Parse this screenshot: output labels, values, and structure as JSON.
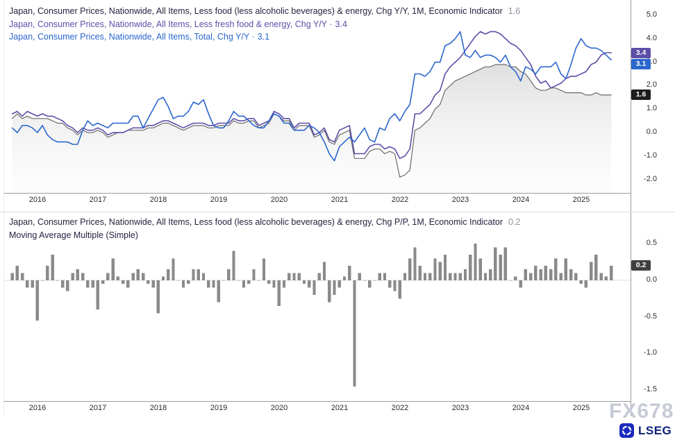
{
  "watermark": "FX678",
  "brand": {
    "logo_text": "LSEG"
  },
  "chart_data": [
    {
      "type": "line",
      "x_start": 2015.5833,
      "x_step": 0.0833333,
      "xlim": [
        2015.45,
        2025.82
      ],
      "ylim": [
        -2.57,
        5.5
      ],
      "x_ticks": [
        2016,
        2017,
        2018,
        2019,
        2020,
        2021,
        2022,
        2023,
        2024,
        2025
      ],
      "y_ticks": [
        5.0,
        4.0,
        3.0,
        2.0,
        1.0,
        0.0,
        -1.0,
        -2.0
      ],
      "grid": false,
      "legend_position": "top-left",
      "legend": [
        {
          "text": "Japan, Consumer Prices, Nationwide, All Items, Less food (less alcoholic beverages) & energy, Chg Y/Y, 1M, Economic Indicator",
          "value": "1.6",
          "color": "#23233f",
          "value_color": "#8f8f9b"
        },
        {
          "text": "Japan, Consumer Prices, Nationwide, All Items, Less fresh food & energy, Chg Y/Y ·",
          "value": "3.4",
          "color": "#5b4fa8",
          "value_color": "#5b4fa8"
        },
        {
          "text": "Japan, Consumer Prices, Nationwide, All Items, Total, Chg Y/Y ·",
          "value": "3.1",
          "color": "#2a66cc",
          "value_color": "#2a66cc"
        }
      ],
      "series": [
        {
          "name": "Japan, Consumer Prices, Nationwide, All Items, Less food (less alcoholic beverages) & energy, Chg Y/Y, 1M, Economic Indicator",
          "color": "#6a6a6a",
          "badge_color": "#1c1c1c",
          "area": true,
          "width": 1.2,
          "last_value": 1.6,
          "values": [
            0.6,
            0.8,
            0.6,
            0.7,
            0.6,
            0.6,
            0.6,
            0.6,
            0.5,
            0.4,
            0.4,
            0.2,
            0.1,
            -0.1,
            0.1,
            0.0,
            0.0,
            0.1,
            0.0,
            -0.2,
            -0.1,
            0.0,
            0.0,
            0.1,
            0.1,
            0.1,
            0.1,
            0.2,
            0.2,
            0.3,
            0.4,
            0.4,
            0.3,
            0.2,
            0.1,
            0.2,
            0.3,
            0.3,
            0.3,
            0.2,
            0.2,
            0.3,
            0.3,
            0.3,
            0.5,
            0.4,
            0.4,
            0.5,
            0.5,
            0.2,
            0.3,
            0.4,
            0.8,
            0.7,
            0.5,
            0.5,
            0.1,
            0.3,
            0.3,
            0.3,
            -0.2,
            -0.1,
            0.1,
            -0.4,
            -0.5,
            -0.1,
            0.0,
            0.1,
            -1.1,
            -1.1,
            -1.1,
            -0.8,
            -0.7,
            -0.7,
            -0.9,
            -0.8,
            -0.9,
            -1.9,
            -1.8,
            -1.6,
            0.1,
            0.2,
            0.4,
            0.6,
            1.0,
            1.2,
            1.8,
            2.0,
            2.2,
            2.3,
            2.4,
            2.5,
            2.6,
            2.7,
            2.8,
            2.8,
            2.9,
            2.9,
            2.9,
            2.8,
            2.8,
            2.6,
            2.5,
            2.2,
            1.9,
            1.8,
            1.8,
            1.9,
            1.9,
            1.8,
            1.7,
            1.7,
            1.7,
            1.7,
            1.6,
            1.6,
            1.7,
            1.6,
            1.6,
            1.6
          ]
        },
        {
          "name": "Japan, Consumer Prices, Nationwide, All Items, Less fresh food & energy, Chg Y/Y",
          "color": "#5b4fa8",
          "width": 1.6,
          "last_value": 3.4,
          "values": [
            0.8,
            0.9,
            0.7,
            0.9,
            0.8,
            0.7,
            0.8,
            0.7,
            0.7,
            0.6,
            0.5,
            0.3,
            0.2,
            0.0,
            0.2,
            0.1,
            0.1,
            0.2,
            0.1,
            -0.1,
            0.0,
            0.0,
            0.0,
            0.1,
            0.2,
            0.2,
            0.2,
            0.3,
            0.3,
            0.4,
            0.5,
            0.5,
            0.4,
            0.3,
            0.2,
            0.3,
            0.4,
            0.4,
            0.4,
            0.3,
            0.3,
            0.4,
            0.4,
            0.4,
            0.6,
            0.5,
            0.5,
            0.6,
            0.6,
            0.3,
            0.4,
            0.5,
            0.9,
            0.8,
            0.6,
            0.6,
            0.2,
            0.4,
            0.4,
            0.4,
            -0.1,
            0.0,
            0.2,
            -0.3,
            -0.4,
            0.1,
            0.2,
            0.3,
            -0.9,
            -0.9,
            -0.9,
            -0.6,
            -0.5,
            -0.5,
            -0.7,
            -0.6,
            -0.7,
            -1.1,
            -1.0,
            -0.7,
            0.8,
            0.8,
            1.0,
            1.2,
            1.6,
            1.8,
            2.5,
            2.8,
            3.0,
            3.2,
            3.5,
            3.8,
            4.1,
            4.3,
            4.2,
            4.3,
            4.3,
            4.2,
            4.0,
            3.8,
            3.7,
            3.5,
            3.2,
            2.9,
            2.4,
            2.1,
            2.2,
            1.9,
            2.0,
            2.1,
            2.3,
            2.4,
            2.4,
            2.5,
            2.6,
            2.9,
            3.0,
            3.3,
            3.4,
            3.4
          ]
        },
        {
          "name": "Japan, Consumer Prices, Nationwide, All Items, Total, Chg Y/Y",
          "color": "#2a66cc",
          "width": 1.6,
          "last_value": 3.1,
          "values": [
            0.2,
            0.0,
            0.3,
            0.3,
            0.2,
            0.0,
            0.3,
            -0.1,
            -0.3,
            -0.4,
            -0.4,
            -0.4,
            -0.5,
            -0.5,
            0.1,
            0.5,
            0.3,
            0.4,
            0.3,
            0.2,
            0.4,
            0.4,
            0.4,
            0.4,
            0.7,
            0.7,
            0.2,
            0.6,
            1.0,
            1.4,
            1.5,
            1.1,
            0.6,
            0.7,
            0.7,
            0.9,
            1.3,
            1.2,
            1.4,
            0.8,
            0.3,
            0.2,
            0.2,
            0.5,
            0.9,
            0.7,
            0.7,
            0.5,
            0.3,
            0.2,
            0.2,
            0.5,
            0.8,
            0.7,
            0.4,
            0.4,
            0.1,
            0.1,
            0.1,
            0.3,
            0.2,
            0.0,
            -0.4,
            -0.9,
            -1.2,
            -0.6,
            -0.4,
            -0.2,
            -0.4,
            -0.1,
            0.2,
            -0.3,
            -0.4,
            0.2,
            0.1,
            0.6,
            0.8,
            0.5,
            0.9,
            1.2,
            2.5,
            2.5,
            2.4,
            2.6,
            3.0,
            3.0,
            3.7,
            3.8,
            4.0,
            4.3,
            3.3,
            3.2,
            3.5,
            3.2,
            3.3,
            3.3,
            3.2,
            3.0,
            3.3,
            2.8,
            2.6,
            2.2,
            2.8,
            2.7,
            2.5,
            2.8,
            2.8,
            2.8,
            3.0,
            2.5,
            2.3,
            2.9,
            3.6,
            4.0,
            3.7,
            3.6,
            3.6,
            3.5,
            3.3,
            3.1
          ]
        }
      ]
    },
    {
      "type": "bar",
      "x_start": 2015.5833,
      "x_step": 0.0833333,
      "xlim": [
        2015.45,
        2025.82
      ],
      "ylim": [
        -1.65,
        0.89
      ],
      "x_ticks": [
        2016,
        2017,
        2018,
        2019,
        2020,
        2021,
        2022,
        2023,
        2024,
        2025
      ],
      "y_ticks": [
        0.5,
        0.0,
        -0.5,
        -1.0,
        -1.5
      ],
      "grid": false,
      "legend_position": "top-left",
      "legend": [
        {
          "text": "Japan, Consumer Prices, Nationwide, All Items, Less food (less alcoholic beverages) & energy, Chg P/P, 1M, Economic Indicator",
          "value": "0.2",
          "color": "#23233f",
          "value_color": "#8f8f9b"
        },
        {
          "text": "Moving Average Multiple (Simple)",
          "value": "",
          "color": "#23233f",
          "value_color": "#8f8f9b"
        }
      ],
      "series": [
        {
          "name": "Japan, Consumer Prices, Nationwide, All Items, Less food (less alcoholic beverages) & energy, Chg P/P, 1M",
          "color": "#8a8a8a",
          "badge_color": "#3f3f3f",
          "last_value": 0.2,
          "values": [
            0.1,
            0.2,
            0.1,
            -0.1,
            -0.1,
            -0.55,
            0.0,
            0.2,
            0.35,
            0.0,
            -0.1,
            -0.15,
            0.1,
            0.15,
            0.1,
            -0.1,
            -0.1,
            -0.4,
            -0.05,
            0.1,
            0.3,
            0.05,
            -0.05,
            -0.1,
            0.1,
            0.15,
            0.1,
            -0.05,
            -0.1,
            -0.45,
            0.05,
            0.15,
            0.3,
            0.0,
            -0.1,
            -0.05,
            0.15,
            0.15,
            0.1,
            -0.1,
            -0.1,
            -0.3,
            0.0,
            0.15,
            0.4,
            0.0,
            -0.1,
            -0.05,
            0.15,
            0.0,
            0.3,
            -0.05,
            -0.1,
            -0.35,
            -0.1,
            0.1,
            0.1,
            0.1,
            -0.05,
            -0.1,
            -0.2,
            0.1,
            0.25,
            -0.3,
            -0.2,
            -0.1,
            0.05,
            0.2,
            -1.45,
            0.1,
            0.0,
            -0.1,
            0.0,
            0.1,
            0.1,
            -0.1,
            -0.15,
            -0.25,
            0.1,
            0.3,
            0.45,
            0.2,
            0.1,
            0.1,
            0.3,
            0.25,
            0.35,
            0.1,
            0.1,
            0.1,
            0.15,
            0.35,
            0.5,
            0.3,
            0.1,
            0.15,
            0.45,
            0.35,
            0.45,
            0.0,
            0.05,
            -0.1,
            0.15,
            0.1,
            0.2,
            0.15,
            0.2,
            0.15,
            0.3,
            0.1,
            0.3,
            0.15,
            0.1,
            -0.05,
            -0.1,
            0.25,
            0.35,
            0.1,
            0.05,
            0.2
          ]
        }
      ]
    }
  ]
}
